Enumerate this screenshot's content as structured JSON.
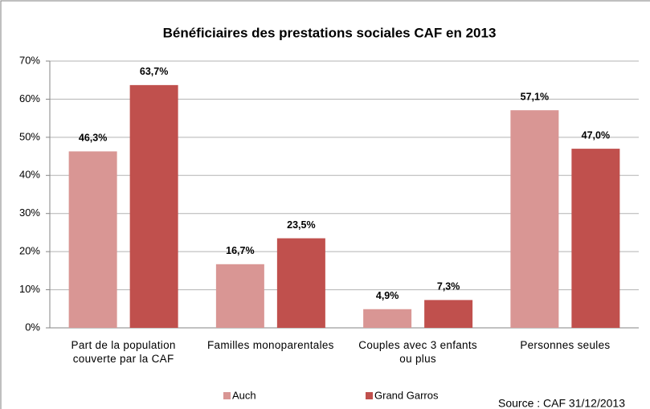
{
  "chart_data": {
    "type": "bar",
    "title": "Bénéficiaires des prestations sociales CAF en 2013",
    "categories": [
      "Part de la population couverte par la CAF",
      "Familles monoparentales",
      "Couples avec 3 enfants ou plus",
      "Personnes seules"
    ],
    "series": [
      {
        "name": "Auch",
        "color": "#d99694",
        "values": [
          46.3,
          16.7,
          4.9,
          57.1
        ],
        "value_labels": [
          "46,3%",
          "16,7%",
          "4,9%",
          "57,1%"
        ]
      },
      {
        "name": "Grand Garros",
        "color": "#c0504d",
        "values": [
          63.7,
          23.5,
          7.3,
          47.0
        ],
        "value_labels": [
          "63,7%",
          "23,5%",
          "7,3%",
          "47,0%"
        ]
      }
    ],
    "ylim": [
      0,
      70
    ],
    "yticks": [
      {
        "value": 0,
        "label": "0%"
      },
      {
        "value": 10,
        "label": "10%"
      },
      {
        "value": 20,
        "label": "20%"
      },
      {
        "value": 30,
        "label": "30%"
      },
      {
        "value": 40,
        "label": "40%"
      },
      {
        "value": 50,
        "label": "50%"
      },
      {
        "value": 60,
        "label": "60%"
      },
      {
        "value": 70,
        "label": "70%"
      }
    ],
    "grid": true,
    "legend": "bottom",
    "source": "Source : CAF 31/12/2013"
  }
}
